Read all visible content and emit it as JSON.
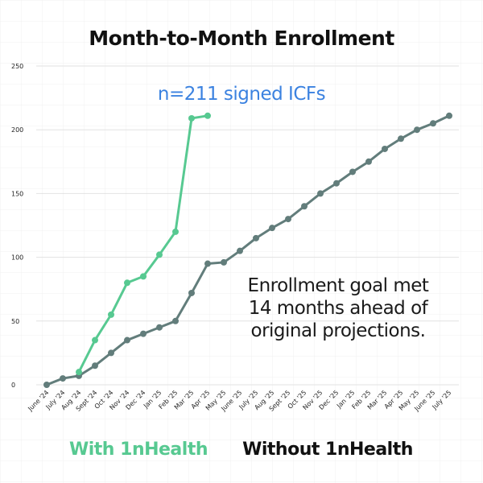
{
  "chart_data": {
    "type": "line",
    "title": "Month-to-Month Enrollment",
    "annotations": [
      "n=211 signed ICFs"
    ],
    "annotation_color": "#3b82e0",
    "note_lines": [
      "Enrollment goal met",
      "14 months ahead of",
      "original projections."
    ],
    "categories": [
      "June '24",
      "July '24",
      "Aug '24",
      "Sept '24",
      "Oct '24",
      "Nov '24",
      "Dec '24",
      "Jan '25",
      "Feb '25",
      "Mar '25",
      "Apr '25",
      "May '25",
      "June '25",
      "July '25",
      "Aug '25",
      "Sept '25",
      "Oct '25",
      "Nov '25",
      "Dec '25",
      "Jan '25",
      "Feb '25",
      "Mar '25",
      "Apr '25",
      "May '25",
      "June '25",
      "July '25"
    ],
    "series": [
      {
        "name": "With 1nHealth",
        "color": "#57c991",
        "values": [
          null,
          null,
          10,
          35,
          55,
          80,
          85,
          102,
          120,
          209,
          211,
          null,
          null,
          null,
          null,
          null,
          null,
          null,
          null,
          null,
          null,
          null,
          null,
          null,
          null,
          null
        ]
      },
      {
        "name": "Without 1nHealth",
        "color": "#627d7b",
        "values": [
          0,
          5,
          7,
          15,
          25,
          35,
          40,
          45,
          50,
          72,
          95,
          96,
          105,
          115,
          123,
          130,
          140,
          150,
          158,
          167,
          175,
          185,
          193,
          200,
          205,
          211
        ]
      }
    ],
    "ylim": [
      0,
      250
    ],
    "yticks": [
      0,
      50,
      100,
      150,
      200,
      250
    ],
    "grid": true
  }
}
